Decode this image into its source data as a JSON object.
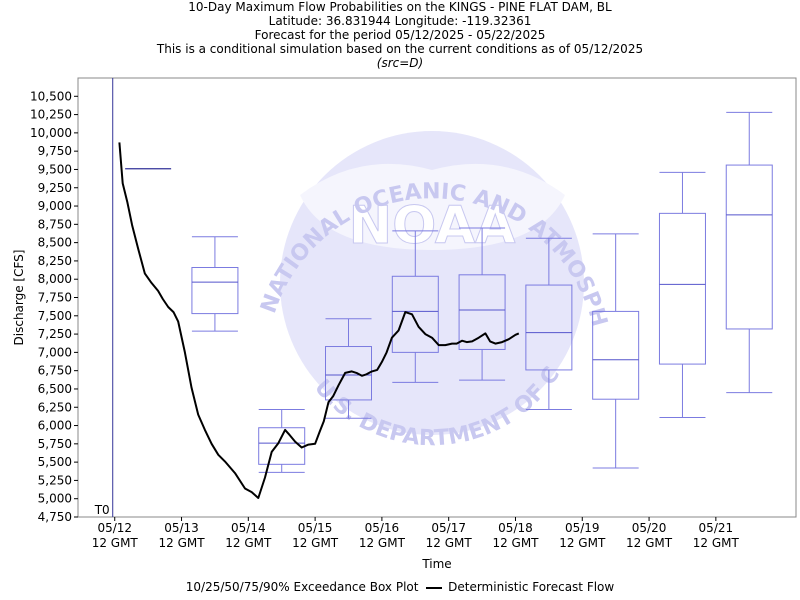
{
  "header": {
    "line1": "10-Day Maximum Flow Probabilities on the KINGS - PINE FLAT DAM, BL",
    "line2": "Latitude: 36.831944 Longitude: -119.32361",
    "line3": "Forecast for the period 05/12/2025 - 05/22/2025",
    "line4": "This is a conditional simulation based on the current conditions as of 05/12/2025",
    "line5": "(src=D)"
  },
  "watermark": {
    "logo_text": "NOAA",
    "ring_text_top": "NATIONAL OCEANIC AND ATMOSPHERIC ADMINISTRATION",
    "ring_text_bottom": "U.S. DEPARTMENT OF COMMERCE",
    "color": "#c8c8f0"
  },
  "colors": {
    "box": "#7b7be0",
    "line": "#000000",
    "median": "#5555cc",
    "t0_line": "#333399",
    "box_fill": "#ffffff"
  },
  "chart_data": {
    "type": "box",
    "xlabel": "Time",
    "ylabel": "Discharge [CFS]",
    "ylim": [
      4750,
      10750
    ],
    "yticks": [
      4750,
      5000,
      5250,
      5500,
      5750,
      6000,
      6250,
      6500,
      6750,
      7000,
      7250,
      7500,
      7750,
      8000,
      8250,
      8500,
      8750,
      9000,
      9250,
      9500,
      9750,
      10000,
      10250,
      10500
    ],
    "ytick_labels": [
      "4,750",
      "5,000",
      "5,250",
      "5,500",
      "5,750",
      "6,000",
      "6,250",
      "6,500",
      "6,750",
      "7,000",
      "7,250",
      "7,500",
      "7,750",
      "8,000",
      "8,250",
      "8,500",
      "8,750",
      "9,000",
      "9,250",
      "9,500",
      "9,750",
      "10,000",
      "10,250",
      "10,500"
    ],
    "xlim": [
      -0.55,
      10.2
    ],
    "xticks": [
      {
        "pos": 0,
        "date": "05/12",
        "time": "12 GMT"
      },
      {
        "pos": 1,
        "date": "05/13",
        "time": "12 GMT"
      },
      {
        "pos": 2,
        "date": "05/14",
        "time": "12 GMT"
      },
      {
        "pos": 3,
        "date": "05/15",
        "time": "12 GMT"
      },
      {
        "pos": 4,
        "date": "05/16",
        "time": "12 GMT"
      },
      {
        "pos": 5,
        "date": "05/17",
        "time": "12 GMT"
      },
      {
        "pos": 6,
        "date": "05/18",
        "time": "12 GMT"
      },
      {
        "pos": 7,
        "date": "05/19",
        "time": "12 GMT"
      },
      {
        "pos": 8,
        "date": "05/20",
        "time": "12 GMT"
      },
      {
        "pos": 9,
        "date": "05/21",
        "time": "12 GMT"
      }
    ],
    "t0": {
      "pos": -0.03,
      "label": "T0"
    },
    "boxes": [
      {
        "x": 0.5,
        "p10": 9510,
        "p25": 9510,
        "p50": 9510,
        "p75": 9510,
        "p90": 9510
      },
      {
        "x": 1.5,
        "p10": 7290,
        "p25": 7530,
        "p50": 7960,
        "p75": 8160,
        "p90": 8580
      },
      {
        "x": 2.5,
        "p10": 5360,
        "p25": 5470,
        "p50": 5760,
        "p75": 5970,
        "p90": 6220
      },
      {
        "x": 3.5,
        "p10": 6100,
        "p25": 6350,
        "p50": 6690,
        "p75": 7080,
        "p90": 7460
      },
      {
        "x": 4.5,
        "p10": 6590,
        "p25": 7000,
        "p50": 7560,
        "p75": 8040,
        "p90": 8660
      },
      {
        "x": 5.5,
        "p10": 6620,
        "p25": 7040,
        "p50": 7580,
        "p75": 8060,
        "p90": 8700
      },
      {
        "x": 6.5,
        "p10": 6220,
        "p25": 6760,
        "p50": 7270,
        "p75": 7920,
        "p90": 8560
      },
      {
        "x": 7.5,
        "p10": 5420,
        "p25": 6360,
        "p50": 6900,
        "p75": 7560,
        "p90": 8620
      },
      {
        "x": 8.5,
        "p10": 6110,
        "p25": 6840,
        "p50": 7930,
        "p75": 8900,
        "p90": 9460
      },
      {
        "x": 9.5,
        "p10": 6450,
        "p25": 7320,
        "p50": 8880,
        "p75": 9560,
        "p90": 10280
      }
    ],
    "series": [
      {
        "name": "Deterministic Forecast Flow",
        "x": [
          0.07,
          0.12,
          0.19,
          0.26,
          0.35,
          0.45,
          0.55,
          0.65,
          0.72,
          0.8,
          0.88,
          0.95,
          1.05,
          1.15,
          1.25,
          1.35,
          1.45,
          1.55,
          1.65,
          1.8,
          1.95,
          2.05,
          2.15,
          2.25,
          2.35,
          2.45,
          2.55,
          2.62,
          2.7,
          2.8,
          2.9,
          3.0,
          3.07,
          3.13,
          3.2,
          3.27,
          3.35,
          3.45,
          3.55,
          3.62,
          3.7,
          3.77,
          3.85,
          3.93,
          4.0,
          4.07,
          4.15,
          4.25,
          4.35,
          4.45,
          4.55,
          4.65,
          4.75,
          4.85,
          4.95,
          5.05,
          5.12,
          5.2,
          5.27,
          5.35,
          5.45,
          5.55,
          5.62,
          5.7,
          5.8,
          5.9,
          6.0,
          6.05
        ],
        "y": [
          9870,
          9310,
          9050,
          8740,
          8420,
          8080,
          7950,
          7840,
          7730,
          7620,
          7550,
          7420,
          7000,
          6520,
          6150,
          5940,
          5750,
          5600,
          5510,
          5350,
          5140,
          5090,
          5010,
          5290,
          5640,
          5760,
          5940,
          5870,
          5780,
          5700,
          5740,
          5750,
          5920,
          6060,
          6320,
          6400,
          6550,
          6720,
          6740,
          6720,
          6680,
          6700,
          6740,
          6760,
          6870,
          7000,
          7200,
          7300,
          7550,
          7520,
          7350,
          7250,
          7200,
          7100,
          7100,
          7120,
          7120,
          7160,
          7140,
          7150,
          7200,
          7260,
          7150,
          7120,
          7140,
          7180,
          7240,
          7260
        ]
      }
    ],
    "legend": {
      "box_label": "10/25/50/75/90% Exceedance Box Plot",
      "line_label": "Deterministic Forecast Flow",
      "placement": "bottom"
    }
  }
}
